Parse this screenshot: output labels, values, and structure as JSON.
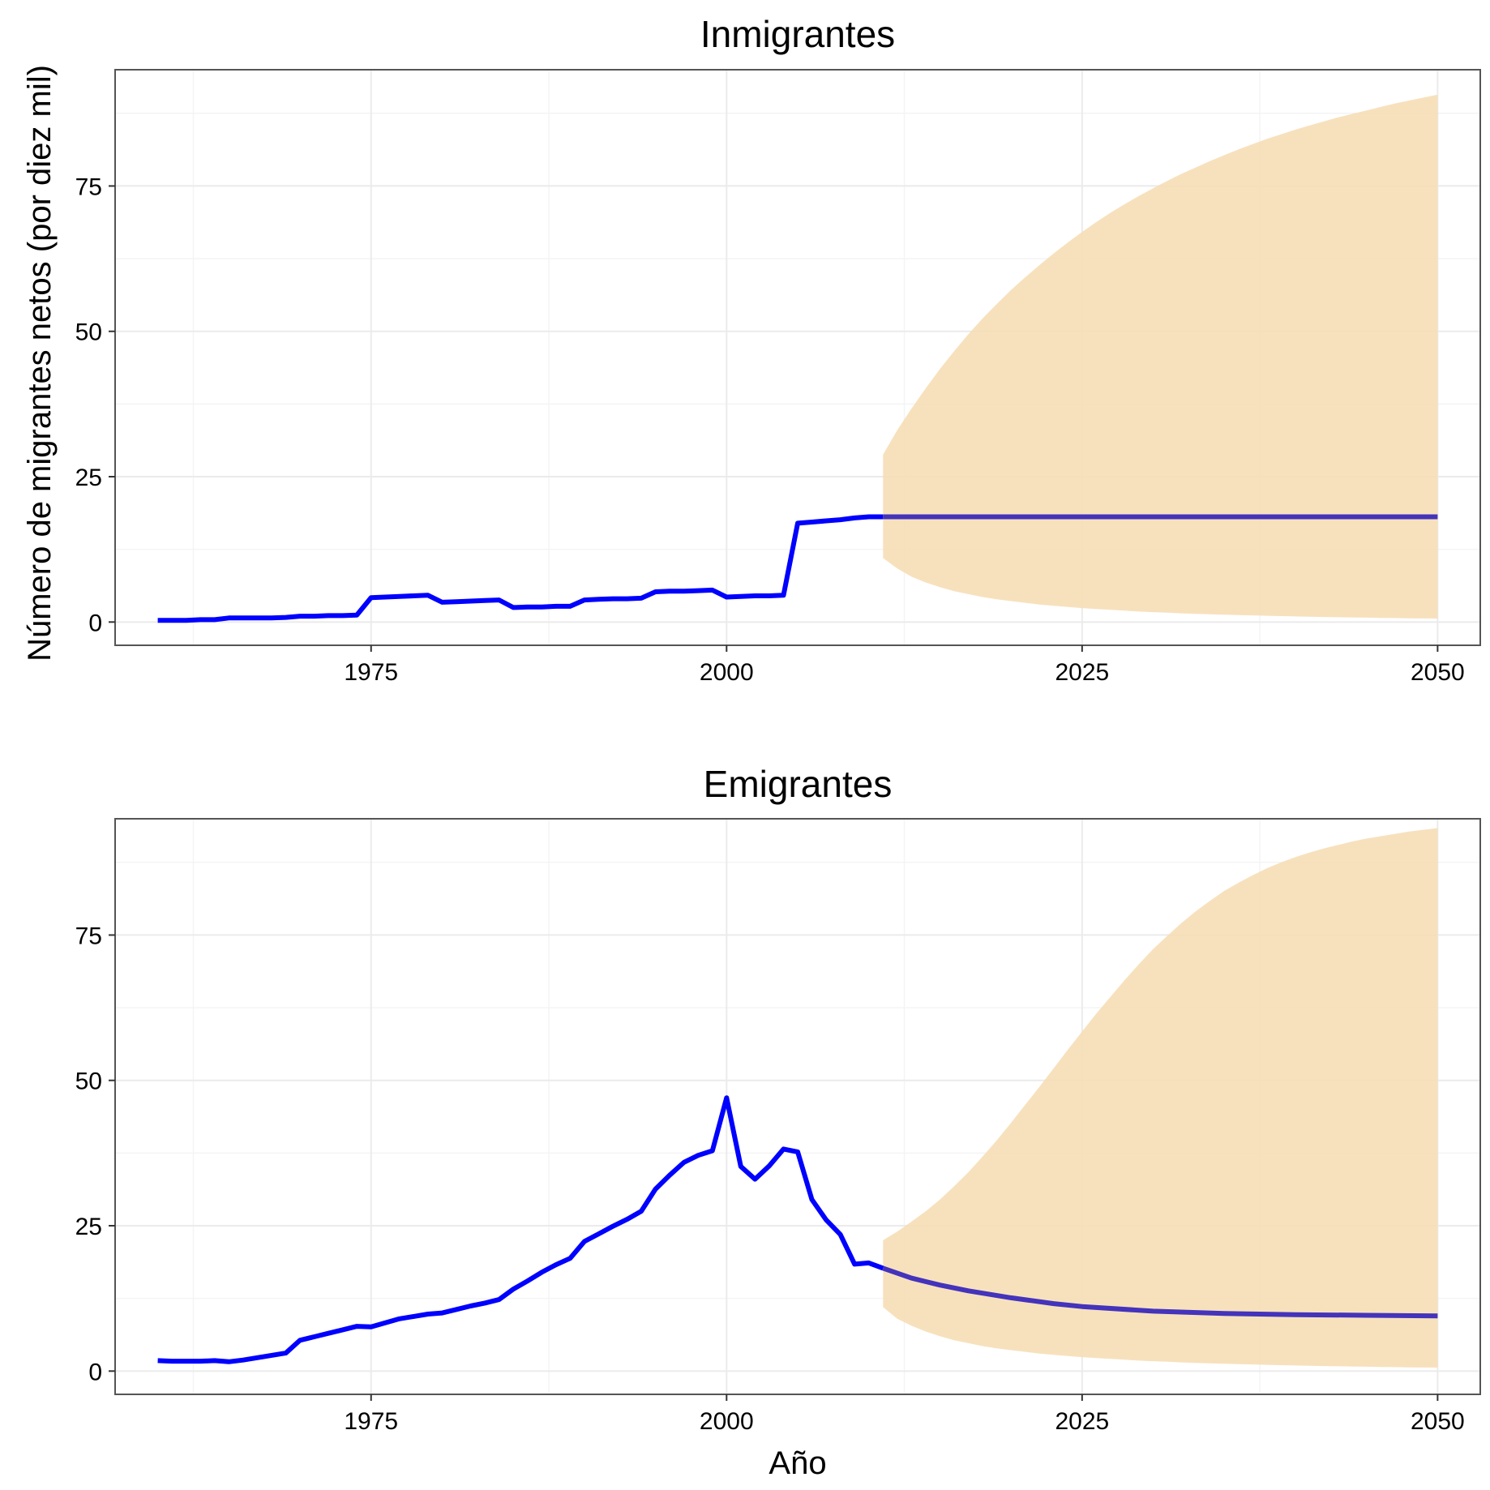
{
  "colors": {
    "line": "#0000ff",
    "forecast_line": "#4433bb",
    "band": "#f6deb6",
    "grid_major": "#ebebeb",
    "grid_minor": "#f4f4f4",
    "panel_border": "#555555"
  },
  "labels": {
    "ylabel": "Número de migrantes netos (por diez mil)",
    "xlabel": "Año"
  },
  "chart_data": [
    {
      "type": "area",
      "title": "Inmigrantes",
      "xlim": [
        1957,
        2053
      ],
      "ylim": [
        -4,
        95
      ],
      "x_ticks": [
        1975,
        2000,
        2025,
        2050
      ],
      "y_ticks": [
        0,
        25,
        50,
        75
      ],
      "grid": true,
      "series": [
        {
          "role": "observed",
          "x": [
            1960,
            1961,
            1962,
            1963,
            1964,
            1965,
            1966,
            1967,
            1968,
            1969,
            1970,
            1971,
            1972,
            1973,
            1974,
            1975,
            1976,
            1977,
            1978,
            1979,
            1980,
            1981,
            1982,
            1983,
            1984,
            1985,
            1986,
            1987,
            1988,
            1989,
            1990,
            1991,
            1992,
            1993,
            1994,
            1995,
            1996,
            1997,
            1998,
            1999,
            2000,
            2001,
            2002,
            2003,
            2004,
            2005,
            2006,
            2007,
            2008,
            2009,
            2010,
            2011
          ],
          "y": [
            0.3,
            0.3,
            0.3,
            0.4,
            0.4,
            0.7,
            0.7,
            0.7,
            0.7,
            0.8,
            1.0,
            1.0,
            1.1,
            1.1,
            1.2,
            4.2,
            4.3,
            4.4,
            4.5,
            4.6,
            3.4,
            3.5,
            3.6,
            3.7,
            3.8,
            2.5,
            2.6,
            2.6,
            2.7,
            2.7,
            3.8,
            3.9,
            4.0,
            4.0,
            4.1,
            5.2,
            5.3,
            5.3,
            5.4,
            5.5,
            4.3,
            4.4,
            4.5,
            4.5,
            4.6,
            17.0,
            17.2,
            17.4,
            17.6,
            17.9,
            18.1,
            18.1
          ]
        },
        {
          "role": "forecast",
          "x": [
            2011,
            2015,
            2020,
            2025,
            2030,
            2035,
            2040,
            2045,
            2050
          ],
          "y": [
            18.1,
            18.1,
            18.1,
            18.1,
            18.1,
            18.1,
            18.1,
            18.1,
            18.1
          ]
        }
      ],
      "band": {
        "x": [
          2011,
          2012,
          2013,
          2014,
          2015,
          2016,
          2017,
          2018,
          2019,
          2020,
          2021,
          2022,
          2023,
          2024,
          2025,
          2026,
          2027,
          2028,
          2029,
          2030,
          2031,
          2032,
          2033,
          2034,
          2035,
          2036,
          2037,
          2038,
          2039,
          2040,
          2041,
          2042,
          2043,
          2044,
          2045,
          2046,
          2047,
          2048,
          2049,
          2050
        ],
        "lower": [
          11.0,
          9.2,
          7.8,
          6.8,
          6.0,
          5.3,
          4.8,
          4.3,
          3.9,
          3.6,
          3.3,
          3.0,
          2.8,
          2.6,
          2.4,
          2.25,
          2.1,
          1.95,
          1.8,
          1.7,
          1.6,
          1.5,
          1.4,
          1.33,
          1.26,
          1.2,
          1.14,
          1.08,
          1.02,
          0.97,
          0.92,
          0.87,
          0.83,
          0.79,
          0.75,
          0.71,
          0.68,
          0.65,
          0.62,
          0.6
        ],
        "upper": [
          28.8,
          33.0,
          36.7,
          40.2,
          43.5,
          46.6,
          49.5,
          52.2,
          54.7,
          57.1,
          59.3,
          61.4,
          63.4,
          65.3,
          67.1,
          68.8,
          70.4,
          71.9,
          73.3,
          74.6,
          75.9,
          77.1,
          78.2,
          79.3,
          80.3,
          81.3,
          82.2,
          83.1,
          83.9,
          84.7,
          85.4,
          86.1,
          86.8,
          87.4,
          88.0,
          88.6,
          89.2,
          89.7,
          90.2,
          90.7
        ]
      }
    },
    {
      "type": "area",
      "title": "Emigrantes",
      "xlim": [
        1957,
        2053
      ],
      "ylim": [
        -4,
        95
      ],
      "x_ticks": [
        1975,
        2000,
        2025,
        2050
      ],
      "y_ticks": [
        0,
        25,
        50,
        75
      ],
      "grid": true,
      "series": [
        {
          "role": "observed",
          "x": [
            1960,
            1961,
            1962,
            1963,
            1964,
            1965,
            1966,
            1967,
            1968,
            1969,
            1970,
            1971,
            1972,
            1973,
            1974,
            1975,
            1976,
            1977,
            1978,
            1979,
            1980,
            1981,
            1982,
            1983,
            1984,
            1985,
            1986,
            1987,
            1988,
            1989,
            1990,
            1991,
            1992,
            1993,
            1994,
            1995,
            1996,
            1997,
            1998,
            1999,
            2000,
            2001,
            2002,
            2003,
            2004,
            2005,
            2006,
            2007,
            2008,
            2009,
            2010,
            2011
          ],
          "y": [
            1.8,
            1.7,
            1.7,
            1.7,
            1.8,
            1.6,
            1.9,
            2.3,
            2.7,
            3.1,
            5.3,
            5.9,
            6.5,
            7.1,
            7.7,
            7.6,
            8.3,
            9.0,
            9.4,
            9.8,
            10.0,
            10.6,
            11.2,
            11.7,
            12.3,
            14.1,
            15.5,
            17.0,
            18.3,
            19.4,
            22.3,
            23.6,
            24.9,
            26.1,
            27.5,
            31.3,
            33.7,
            35.9,
            37.1,
            37.9,
            47.0,
            35.2,
            33.0,
            35.3,
            38.2,
            37.7,
            29.5,
            26.0,
            23.5,
            18.4,
            18.6,
            17.7
          ]
        },
        {
          "role": "forecast",
          "x": [
            2011,
            2013,
            2015,
            2017,
            2020,
            2023,
            2025,
            2030,
            2035,
            2040,
            2045,
            2050
          ],
          "y": [
            17.7,
            16.0,
            14.8,
            13.8,
            12.6,
            11.6,
            11.1,
            10.3,
            9.9,
            9.7,
            9.6,
            9.5
          ]
        }
      ],
      "band": {
        "x": [
          2011,
          2012,
          2013,
          2014,
          2015,
          2016,
          2017,
          2018,
          2019,
          2020,
          2021,
          2022,
          2023,
          2024,
          2025,
          2026,
          2027,
          2028,
          2029,
          2030,
          2031,
          2032,
          2033,
          2034,
          2035,
          2036,
          2037,
          2038,
          2039,
          2040,
          2041,
          2042,
          2043,
          2044,
          2045,
          2046,
          2047,
          2048,
          2049,
          2050
        ],
        "lower": [
          11.0,
          9.0,
          7.8,
          6.8,
          6.0,
          5.3,
          4.8,
          4.3,
          3.9,
          3.6,
          3.3,
          3.0,
          2.8,
          2.6,
          2.4,
          2.25,
          2.1,
          1.95,
          1.8,
          1.7,
          1.6,
          1.5,
          1.4,
          1.33,
          1.26,
          1.2,
          1.14,
          1.08,
          1.02,
          0.97,
          0.92,
          0.87,
          0.83,
          0.79,
          0.75,
          0.71,
          0.68,
          0.65,
          0.62,
          0.6
        ],
        "upper": [
          22.5,
          24.0,
          25.7,
          27.5,
          29.5,
          31.8,
          34.2,
          36.9,
          39.7,
          42.7,
          45.8,
          48.9,
          52.1,
          55.3,
          58.4,
          61.5,
          64.4,
          67.3,
          70.0,
          72.6,
          74.9,
          77.1,
          79.1,
          80.9,
          82.6,
          84.0,
          85.3,
          86.5,
          87.5,
          88.4,
          89.2,
          89.9,
          90.5,
          91.1,
          91.6,
          92.0,
          92.4,
          92.8,
          93.1,
          93.4
        ]
      }
    }
  ]
}
